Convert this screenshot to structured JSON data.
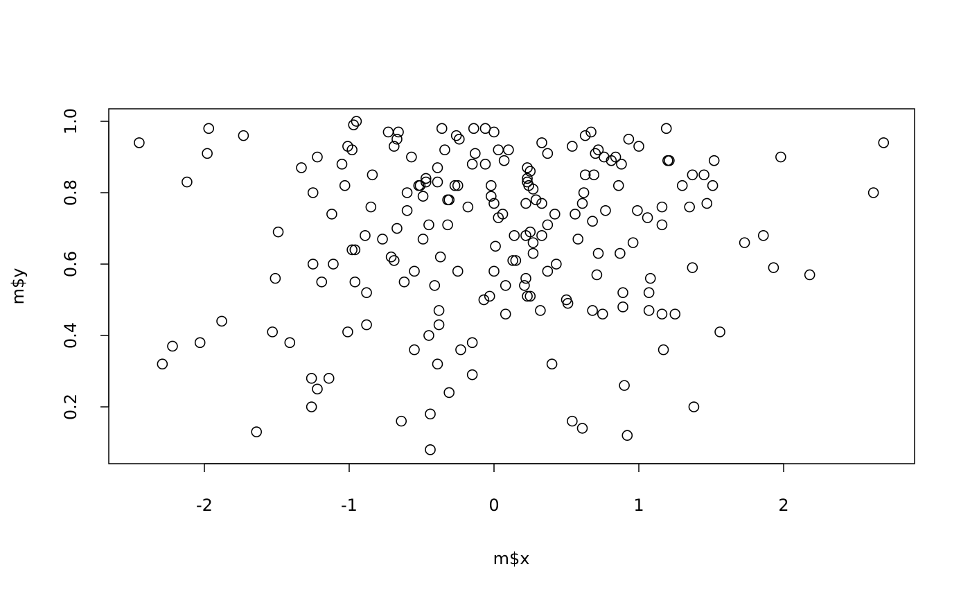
{
  "chart_data": {
    "type": "scatter",
    "x_label": "m$x",
    "y_label": "m$y",
    "color": "#000000",
    "x": [
      -2.45,
      -1.97,
      -1.98,
      -2.12,
      -1.73,
      -1.33,
      -1.22,
      -1.25,
      -1.49,
      -1.51,
      -1.25,
      -1.19,
      -1.11,
      -1.12,
      -1.88,
      -1.53,
      -1.41,
      -2.03,
      -2.22,
      -2.29,
      -1.26,
      -1.14,
      -1.22,
      -1.26,
      -1.64,
      -0.95,
      -0.97,
      -1.01,
      -0.98,
      -1.05,
      -1.03,
      -0.84,
      -0.85,
      -0.89,
      -0.98,
      -0.96,
      -0.96,
      -0.88,
      -0.88,
      -1.01,
      -0.73,
      -0.66,
      -0.67,
      -0.69,
      -0.57,
      -0.77,
      -0.67,
      -0.71,
      -0.69,
      -0.6,
      -0.6,
      -0.52,
      -0.51,
      -0.49,
      -0.47,
      -0.47,
      -0.45,
      -0.49,
      -0.55,
      -0.62,
      -0.55,
      -0.64,
      -0.36,
      -0.34,
      -0.39,
      -0.39,
      -0.31,
      -0.32,
      -0.32,
      -0.37,
      -0.41,
      -0.38,
      -0.38,
      -0.45,
      -0.39,
      -0.31,
      -0.44,
      -0.44,
      -0.26,
      -0.24,
      -0.14,
      -0.13,
      -0.15,
      -0.25,
      -0.27,
      -0.18,
      -0.25,
      -0.23,
      -0.15,
      -0.15,
      -0.06,
      0,
      0.03,
      0.1,
      -0.06,
      0.07,
      -0.02,
      -0.02,
      0,
      0.06,
      0.03,
      0.01,
      0,
      -0.07,
      -0.03,
      0.08,
      0.08,
      0.14,
      0.15,
      0.13,
      0.21,
      0.22,
      0.23,
      0.25,
      0.23,
      0.25,
      0.23,
      0.23,
      0.24,
      0.22,
      0.27,
      0.29,
      0.33,
      0.22,
      0.25,
      0.27,
      0.33,
      0.27,
      0.33,
      0.37,
      0.37,
      0.42,
      0.37,
      0.43,
      0.32,
      0.4,
      0.5,
      0.51,
      0.54,
      0.63,
      0.67,
      0.7,
      0.72,
      0.76,
      0.63,
      0.69,
      0.62,
      0.61,
      0.56,
      0.68,
      0.77,
      0.58,
      0.72,
      0.71,
      0.68,
      0.75,
      0.54,
      0.61,
      0.84,
      0.81,
      0.88,
      0.93,
      1,
      0.86,
      0.99,
      1.06,
      0.96,
      0.87,
      0.89,
      0.89,
      1.08,
      1.07,
      1.07,
      0.9,
      0.92,
      1.19,
      1.2,
      1.21,
      1.16,
      1.16,
      1.16,
      1.25,
      1.17,
      1.37,
      1.45,
      1.52,
      1.3,
      1.51,
      1.35,
      1.47,
      1.37,
      1.56,
      1.38,
      1.73,
      1.86,
      1.93,
      1.98,
      2.18,
      2.62,
      2.69
    ],
    "y": [
      0.94,
      0.98,
      0.91,
      0.83,
      0.96,
      0.87,
      0.9,
      0.8,
      0.69,
      0.56,
      0.6,
      0.55,
      0.6,
      0.74,
      0.44,
      0.41,
      0.38,
      0.38,
      0.37,
      0.32,
      0.28,
      0.28,
      0.25,
      0.2,
      0.13,
      1,
      0.99,
      0.93,
      0.92,
      0.88,
      0.82,
      0.85,
      0.76,
      0.68,
      0.64,
      0.64,
      0.55,
      0.52,
      0.43,
      0.41,
      0.97,
      0.97,
      0.95,
      0.93,
      0.9,
      0.67,
      0.7,
      0.62,
      0.61,
      0.8,
      0.75,
      0.82,
      0.82,
      0.79,
      0.84,
      0.83,
      0.71,
      0.67,
      0.58,
      0.55,
      0.36,
      0.16,
      0.98,
      0.92,
      0.87,
      0.83,
      0.78,
      0.78,
      0.71,
      0.62,
      0.54,
      0.47,
      0.43,
      0.4,
      0.32,
      0.24,
      0.18,
      0.08,
      0.96,
      0.95,
      0.98,
      0.91,
      0.88,
      0.82,
      0.82,
      0.76,
      0.58,
      0.36,
      0.38,
      0.29,
      0.98,
      0.97,
      0.92,
      0.92,
      0.88,
      0.89,
      0.82,
      0.79,
      0.77,
      0.74,
      0.73,
      0.65,
      0.58,
      0.5,
      0.51,
      0.54,
      0.46,
      0.68,
      0.61,
      0.61,
      0.54,
      0.56,
      0.51,
      0.51,
      0.87,
      0.86,
      0.84,
      0.83,
      0.82,
      0.77,
      0.81,
      0.78,
      0.77,
      0.68,
      0.69,
      0.66,
      0.68,
      0.63,
      0.94,
      0.91,
      0.71,
      0.74,
      0.58,
      0.6,
      0.47,
      0.32,
      0.5,
      0.49,
      0.93,
      0.96,
      0.97,
      0.91,
      0.92,
      0.9,
      0.85,
      0.85,
      0.8,
      0.77,
      0.74,
      0.72,
      0.75,
      0.67,
      0.63,
      0.57,
      0.47,
      0.46,
      0.16,
      0.14,
      0.9,
      0.89,
      0.88,
      0.95,
      0.93,
      0.82,
      0.75,
      0.73,
      0.66,
      0.63,
      0.52,
      0.48,
      0.56,
      0.52,
      0.47,
      0.26,
      0.12,
      0.98,
      0.89,
      0.89,
      0.76,
      0.71,
      0.46,
      0.46,
      0.36,
      0.85,
      0.85,
      0.89,
      0.82,
      0.82,
      0.76,
      0.77,
      0.59,
      0.41,
      0.2,
      0.66,
      0.68,
      0.59,
      0.9,
      0.57,
      0.8,
      0.94
    ],
    "xlim": [
      -2.66,
      2.904
    ],
    "ylim": [
      0.0408,
      1.035
    ],
    "xticks": [
      -2,
      -1,
      0,
      1,
      2
    ],
    "yticks": [
      0.2,
      0.4,
      0.6,
      0.8,
      {
        "value": 1,
        "label": "1.0"
      }
    ]
  }
}
